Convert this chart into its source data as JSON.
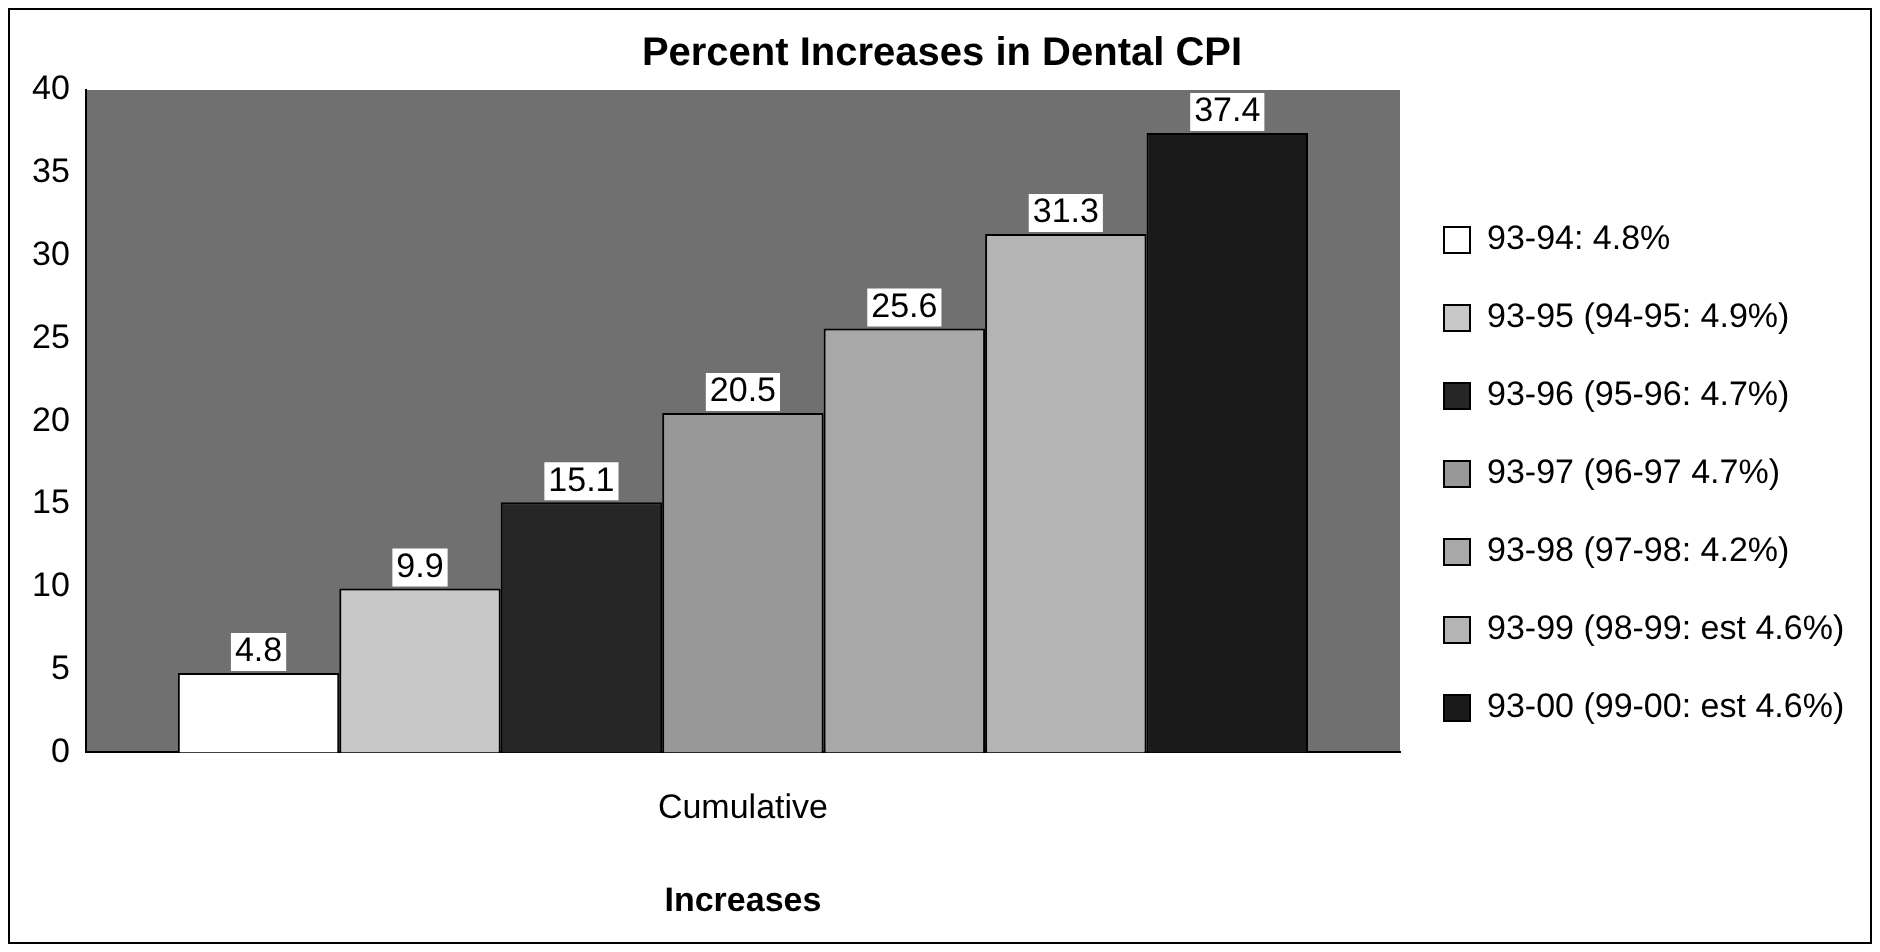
{
  "chart_data": {
    "type": "bar",
    "title": "Percent Increases in Dental CPI",
    "xlabel": "Increases",
    "categories": [
      "Cumulative"
    ],
    "series": [
      {
        "name": "93-94: 4.8%",
        "color": "#ffffff",
        "values": [
          4.8
        ]
      },
      {
        "name": "93-95 (94-95: 4.9%)",
        "color": "#c8c8c8",
        "values": [
          9.9
        ]
      },
      {
        "name": "93-96 (95-96: 4.7%)",
        "color": "#262626",
        "values": [
          15.1
        ]
      },
      {
        "name": "93-97 (96-97 4.7%)",
        "color": "#989898",
        "values": [
          20.5
        ]
      },
      {
        "name": "93-98 (97-98: 4.2%)",
        "color": "#a8a8a8",
        "values": [
          25.6
        ]
      },
      {
        "name": "93-99 (98-99: est 4.6%)",
        "color": "#b4b4b4",
        "values": [
          31.3
        ]
      },
      {
        "name": "93-00 (99-00: est 4.6%)",
        "color": "#1a1a1a",
        "values": [
          37.4
        ]
      }
    ],
    "ylim": [
      0,
      40
    ],
    "yticks": [
      0,
      5,
      10,
      15,
      20,
      25,
      30,
      35,
      40
    ],
    "grid": false,
    "legend": "right",
    "data_labels": true
  }
}
